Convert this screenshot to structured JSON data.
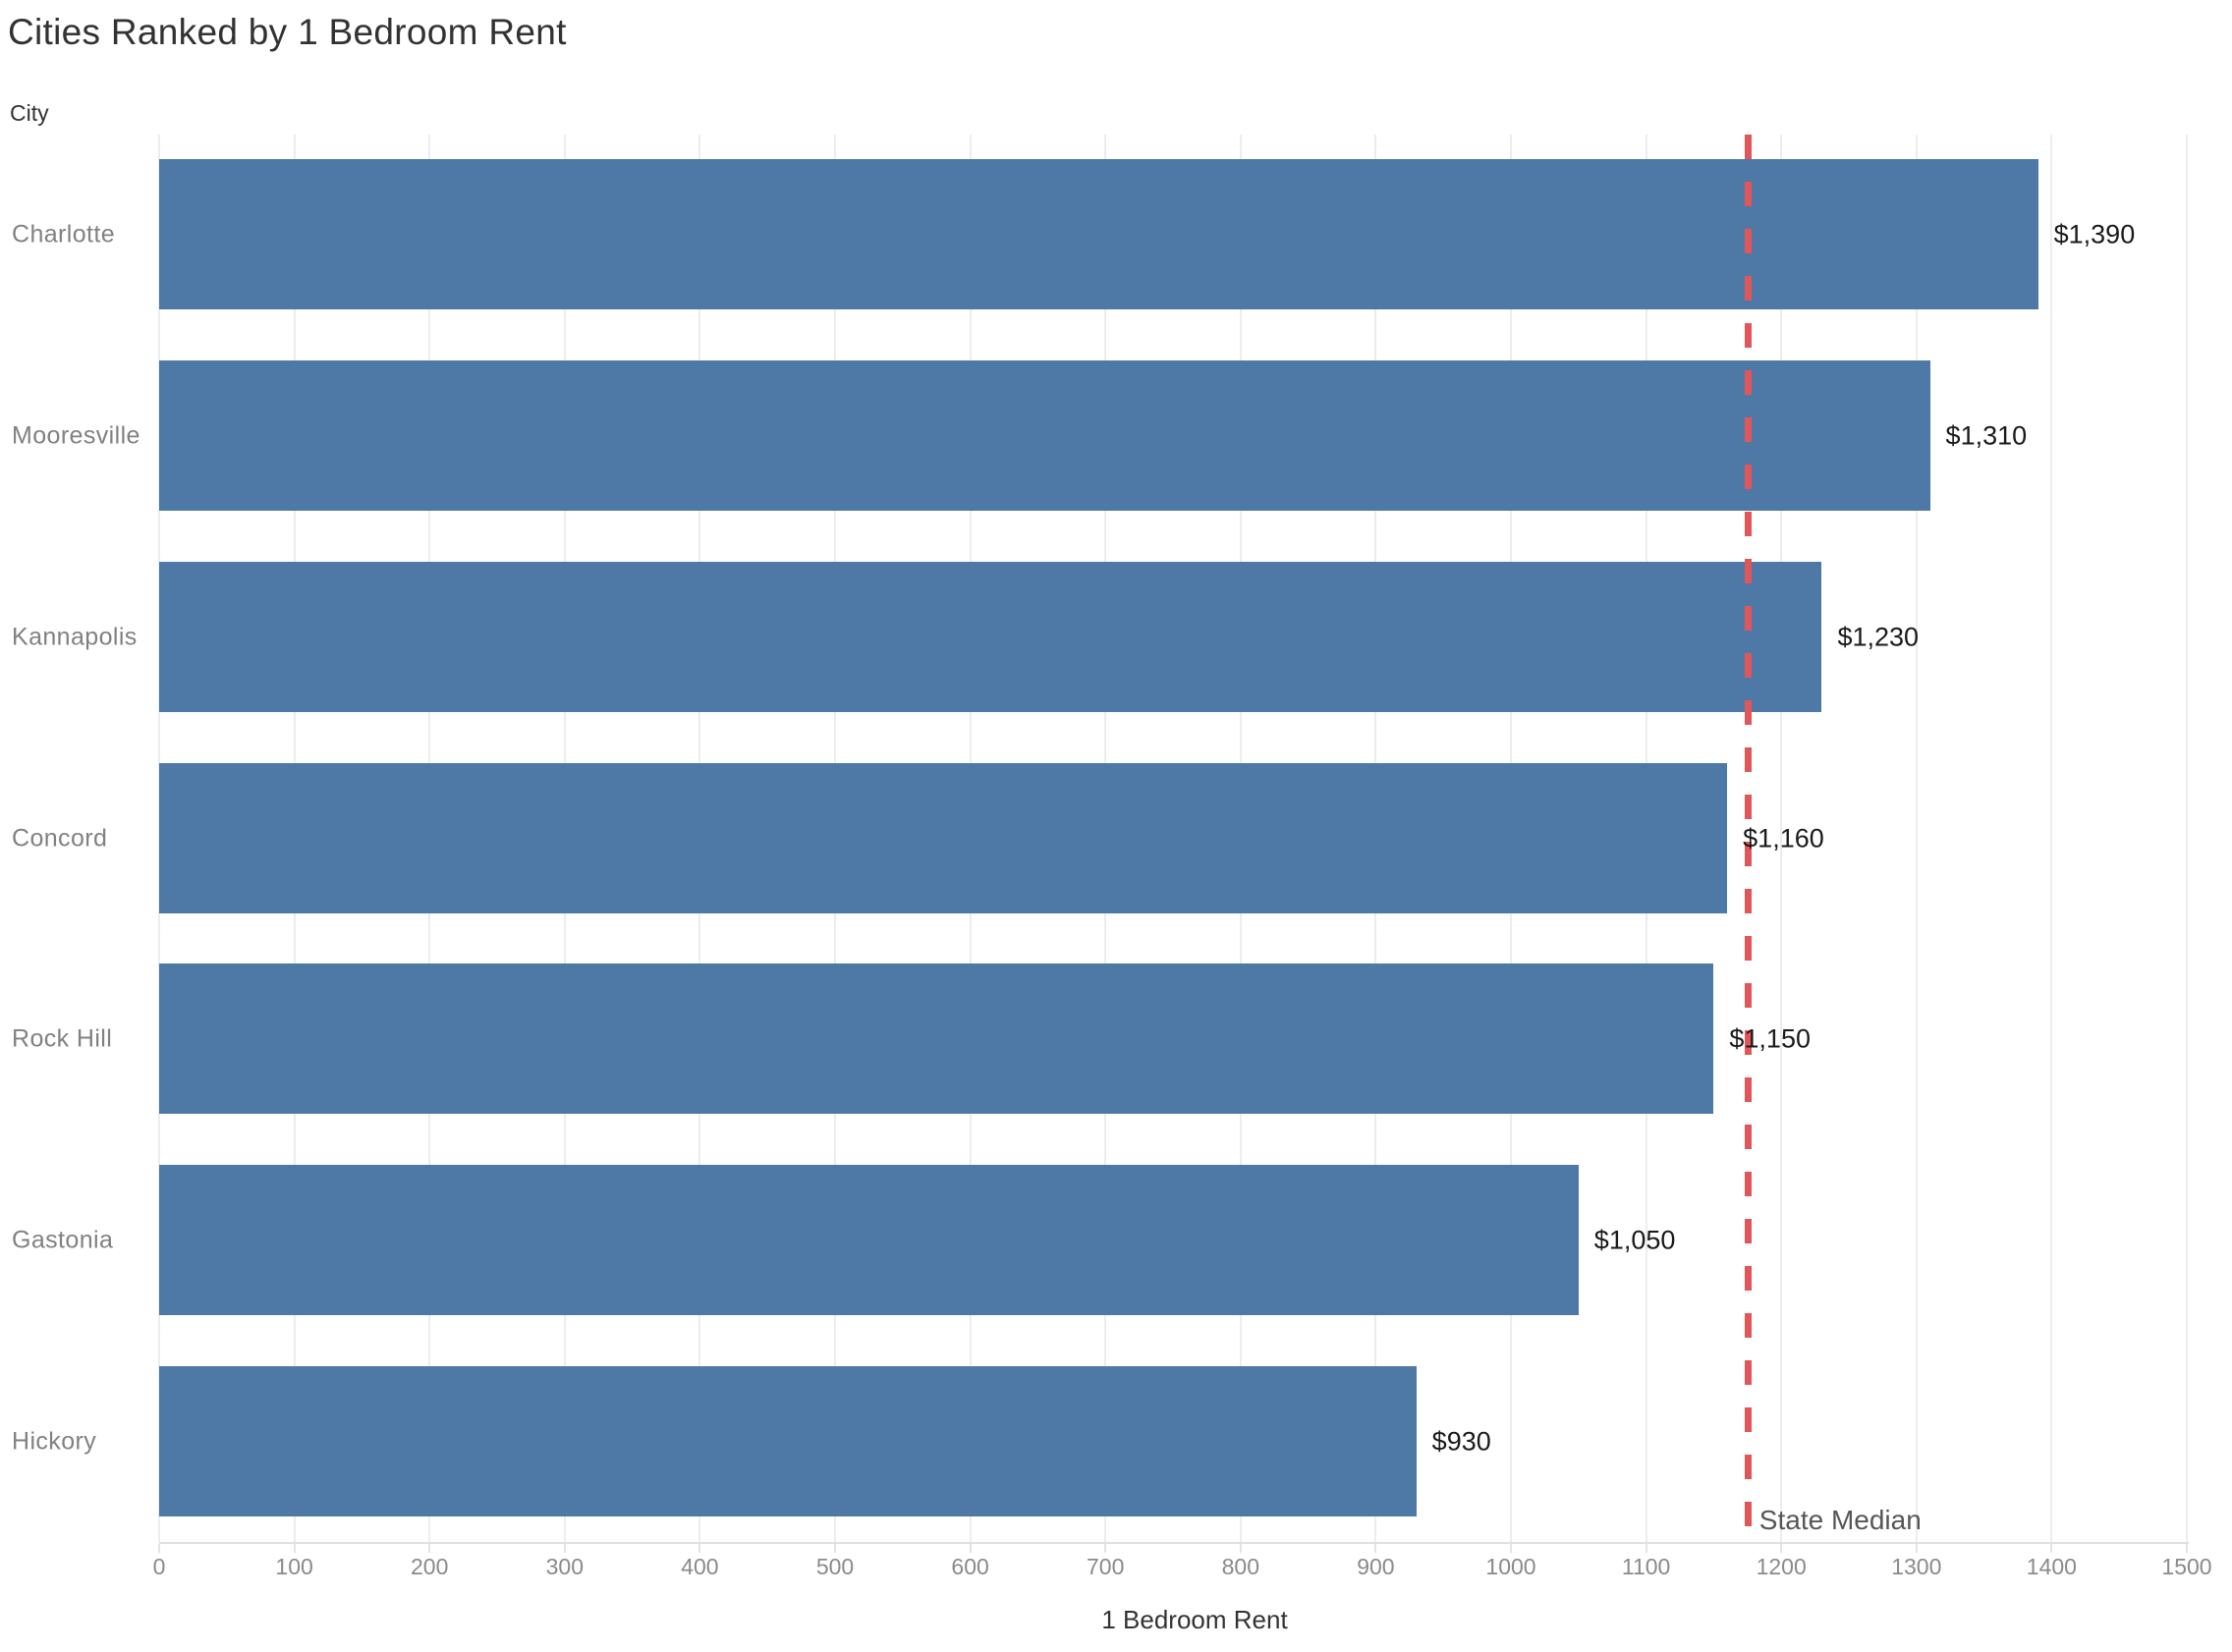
{
  "page": {
    "background": "#ffffff"
  },
  "chart_data": {
    "type": "bar",
    "orientation": "horizontal",
    "title": "Cities Ranked by 1 Bedroom Rent",
    "category_axis_header": "City",
    "xlabel": "1 Bedroom Rent",
    "categories": [
      "Charlotte",
      "Mooresville",
      "Kannapolis",
      "Concord",
      "Rock Hill",
      "Gastonia",
      "Hickory"
    ],
    "values": [
      1390,
      1310,
      1230,
      1160,
      1150,
      1050,
      930
    ],
    "value_labels": [
      "$1,390",
      "$1,310",
      "$1,230",
      "$1,160",
      "$1,150",
      "$1,050",
      "$930"
    ],
    "xlim": [
      0,
      1500
    ],
    "x_ticks": [
      0,
      100,
      200,
      300,
      400,
      500,
      600,
      700,
      800,
      900,
      1000,
      1100,
      1200,
      1300,
      1400,
      1500
    ],
    "grid": "vertical-only",
    "legend": "none",
    "bar_color": "#4e79a7",
    "reference_line": {
      "label": "State Median",
      "value": 1175,
      "color": "#e15759",
      "style": "dashed"
    }
  }
}
